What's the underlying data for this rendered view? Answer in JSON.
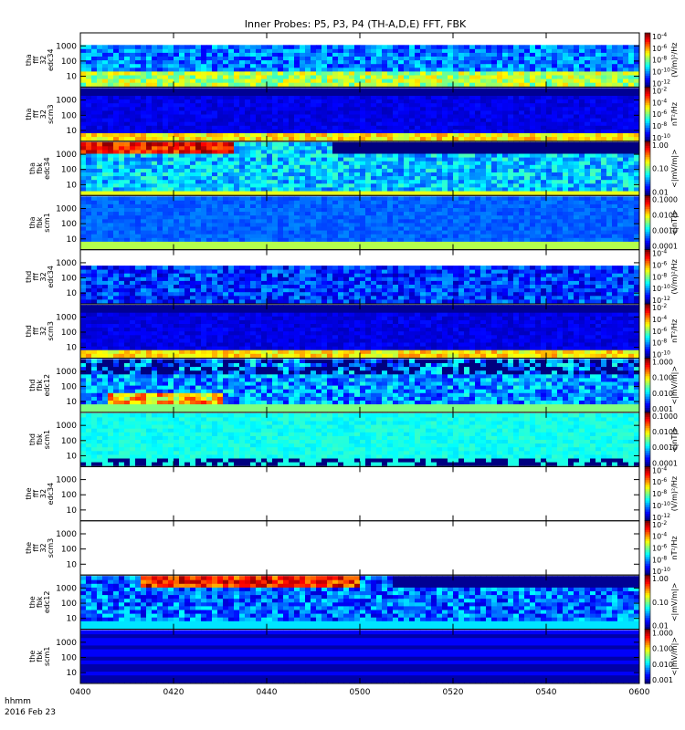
{
  "title": "Inner Probes: P5, P3, P4 (TH-A,D,E) FFT, FBK",
  "footer": {
    "time_unit": "hhmm",
    "date": "2016 Feb 23"
  },
  "chart_data": {
    "type": "heatmap",
    "x_ticks": [
      "0400",
      "0420",
      "0440",
      "0500",
      "0520",
      "0540",
      "0600"
    ],
    "x_range": [
      "04:00",
      "06:00"
    ],
    "y_scale": "log",
    "y_ticks": [
      "10",
      "100",
      "1000"
    ],
    "panels": [
      {
        "probe": "tha",
        "label": [
          "tha",
          "fff",
          "32",
          "edc34"
        ],
        "kind": "fff",
        "palette": "speckle-high",
        "cbar_ticks": [
          "10-4",
          "10-6",
          "10-8",
          "10-10",
          "10-12"
        ],
        "cbar_label": "(V/m)²/Hz",
        "has_data": true
      },
      {
        "probe": "tha",
        "label": [
          "tha",
          "fff",
          "32",
          "scm3"
        ],
        "kind": "fff",
        "palette": "dark-purple",
        "cbar_ticks": [
          "10-2",
          "10-4",
          "10-6",
          "10-8",
          "10-10"
        ],
        "cbar_label": "nT²/Hz",
        "has_data": true
      },
      {
        "probe": "tha",
        "label": [
          "tha",
          "fbk",
          "edc34"
        ],
        "kind": "fbk",
        "palette": "hot-start",
        "cbar_ticks": [
          "1.00",
          "0.10",
          "0.01"
        ],
        "cbar_label": "<|mV/m|>",
        "has_data": true
      },
      {
        "probe": "tha",
        "label": [
          "tha",
          "fbk",
          "scm1"
        ],
        "kind": "fbk",
        "palette": "blue-uniform",
        "cbar_ticks": [
          "0.1000",
          "0.0100",
          "0.0010",
          "0.0001"
        ],
        "cbar_label": "<|nT|>",
        "has_data": true
      },
      {
        "probe": "thd",
        "label": [
          "thd",
          "fff",
          "32",
          "edc34"
        ],
        "kind": "fff",
        "palette": "speckle-low",
        "cbar_ticks": [
          "10-4",
          "10-6",
          "10-8",
          "10-10",
          "10-12"
        ],
        "cbar_label": "(V/m)²/Hz",
        "has_data": true
      },
      {
        "probe": "thd",
        "label": [
          "thd",
          "fff",
          "32",
          "scm3"
        ],
        "kind": "fff",
        "palette": "dark-purple",
        "cbar_ticks": [
          "10-2",
          "10-4",
          "10-6",
          "10-8",
          "10-10"
        ],
        "cbar_label": "nT²/Hz",
        "has_data": true
      },
      {
        "probe": "thd",
        "label": [
          "thd",
          "fbk",
          "edc12"
        ],
        "kind": "fbk",
        "palette": "mixed-yellow",
        "cbar_ticks": [
          "1.000",
          "0.100",
          "0.010",
          "0.001"
        ],
        "cbar_label": "<|mV/m|>",
        "has_data": true
      },
      {
        "probe": "thd",
        "label": [
          "thd",
          "fbk",
          "scm1"
        ],
        "kind": "fbk",
        "palette": "cyan-uniform",
        "cbar_ticks": [
          "0.1000",
          "0.0100",
          "0.0010",
          "0.0001"
        ],
        "cbar_label": "<|nT|>",
        "has_data": true
      },
      {
        "probe": "the",
        "label": [
          "the",
          "fff",
          "32",
          "edc34"
        ],
        "kind": "fff",
        "palette": "none",
        "cbar_ticks": [
          "10-4",
          "10-6",
          "10-8",
          "10-10",
          "10-12"
        ],
        "cbar_label": "(V/m)²/Hz",
        "has_data": false
      },
      {
        "probe": "the",
        "label": [
          "the",
          "fff",
          "32",
          "scm3"
        ],
        "kind": "fff",
        "palette": "none",
        "cbar_ticks": [
          "10-2",
          "10-4",
          "10-6",
          "10-8",
          "10-10"
        ],
        "cbar_label": "nT²/Hz",
        "has_data": false
      },
      {
        "probe": "the",
        "label": [
          "the",
          "fbk",
          "edc12"
        ],
        "kind": "fbk",
        "palette": "hot-mid",
        "cbar_ticks": [
          "1.00",
          "0.10",
          "0.01"
        ],
        "cbar_label": "<|mV/m|>",
        "has_data": true
      },
      {
        "probe": "the",
        "label": [
          "the",
          "fbk",
          "scm1"
        ],
        "kind": "fbk",
        "palette": "purple-bands",
        "cbar_ticks": [
          "1.000",
          "0.100",
          "0.010",
          "0.001"
        ],
        "cbar_label": "<|mV/m|>",
        "has_data": true
      }
    ],
    "colors": {
      "background": "#ffffff",
      "axis": "#000000",
      "palette": "rainbow"
    }
  }
}
